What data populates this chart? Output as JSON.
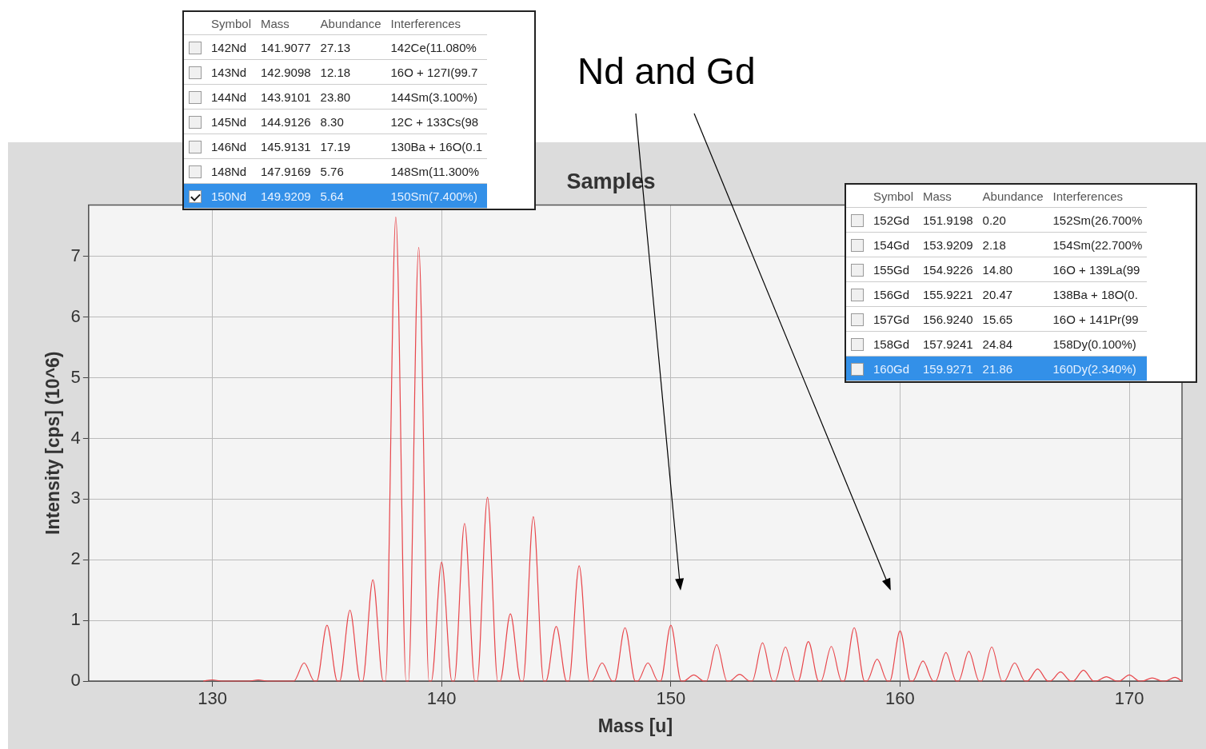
{
  "chart_data": {
    "type": "line",
    "title": "Samples",
    "xlabel": "Mass [u]",
    "ylabel": "Intensity [cps] (10^6)",
    "xlim": [
      124.6,
      172.3
    ],
    "xticks": [
      130,
      140,
      150,
      160,
      170
    ],
    "ylim": [
      0,
      7.85
    ],
    "yticks": [
      0,
      1,
      2,
      3,
      4,
      5,
      6,
      7
    ],
    "grid": true,
    "legend": false,
    "marker": "none",
    "line_style": "solid",
    "series": [
      {
        "color": "#e8474c",
        "x": [
          129.6,
          130,
          130.4,
          131.6,
          132,
          132.4,
          133.55,
          134,
          134.45,
          134.55,
          135,
          135.45,
          135.55,
          136,
          136.45,
          136.55,
          137,
          137.45,
          137.55,
          138,
          138.45,
          138.55,
          139,
          139.45,
          139.55,
          140,
          140.45,
          140.55,
          141,
          141.45,
          141.55,
          142,
          142.45,
          142.55,
          143,
          143.45,
          143.55,
          144,
          144.45,
          144.55,
          145,
          145.45,
          145.55,
          146,
          146.45,
          146.55,
          147,
          147.45,
          147.55,
          148,
          148.45,
          148.55,
          149,
          149.45,
          149.55,
          150,
          150.45,
          150.55,
          151,
          151.45,
          151.55,
          152,
          152.45,
          152.55,
          153,
          153.45,
          153.55,
          154,
          154.45,
          154.55,
          155,
          155.45,
          155.55,
          156,
          156.45,
          156.55,
          157,
          157.45,
          157.55,
          158,
          158.45,
          158.55,
          159,
          159.45,
          159.55,
          160,
          160.45,
          160.55,
          161,
          161.45,
          161.55,
          162,
          162.45,
          162.55,
          163,
          163.45,
          163.55,
          164,
          164.45,
          164.55,
          165,
          165.45,
          165.55,
          166,
          166.45,
          166.55,
          167,
          167.45,
          167.55,
          168,
          168.45,
          168.55,
          169,
          169.45,
          169.55,
          170,
          170.45,
          170.55,
          171,
          171.45,
          171.55,
          172,
          172.3
        ],
        "values": [
          0,
          0.02,
          0,
          0,
          0.02,
          0,
          0,
          0.3,
          0,
          0,
          0.92,
          0,
          0,
          1.17,
          0,
          0,
          1.67,
          0,
          0,
          7.65,
          0,
          0,
          7.15,
          0,
          0,
          1.96,
          0,
          0,
          2.6,
          0,
          0,
          3.03,
          0,
          0,
          1.11,
          0,
          0,
          2.71,
          0,
          0,
          0.9,
          0,
          0,
          1.9,
          0,
          0,
          0.3,
          0,
          0,
          0.88,
          0,
          0,
          0.3,
          0,
          0,
          0.92,
          0,
          0,
          0.1,
          0,
          0,
          0.6,
          0,
          0,
          0.11,
          0,
          0,
          0.63,
          0,
          0,
          0.56,
          0,
          0,
          0.65,
          0,
          0,
          0.57,
          0,
          0,
          0.88,
          0,
          0,
          0.36,
          0,
          0,
          0.83,
          0,
          0,
          0.33,
          0,
          0,
          0.47,
          0,
          0,
          0.49,
          0,
          0,
          0.56,
          0,
          0,
          0.3,
          0,
          0,
          0.2,
          0,
          0,
          0.15,
          0,
          0,
          0.18,
          0,
          0,
          0.07,
          0,
          0,
          0.1,
          0,
          0,
          0.05,
          0,
          0,
          0.06,
          0
        ]
      }
    ],
    "annotations": [
      "Nd and Gd",
      "Symbol  Mass  Abundance  Interferences",
      "142Nd  141.9077  27.13  142Ce(11.080%",
      "143Nd  142.9098  12.18  16O + 127I(99.7",
      "144Nd  143.9101  23.80  144Sm(3.100%)",
      "145Nd  144.9126  8.30  12C + 133Cs(98",
      "146Nd  145.9131  17.19  130Ba + 16O(0.1",
      "148Nd  147.9169  5.76  148Sm(11.300%",
      "150Nd  149.9209  5.64  150Sm(7.400%)",
      "Symbol  Mass  Abundance  Interferences",
      "152Gd  151.9198  0.20  152Sm(26.700%",
      "154Gd  153.9209  2.18  154Sm(22.700%",
      "155Gd  154.9226  14.80  16O + 139La(99",
      "156Gd  155.9221  20.47  138Ba + 18O(0.",
      "157Gd  156.9240  15.65  16O + 141Pr(99",
      "158Gd  157.9241  24.84  158Dy(0.100%)",
      "160Gd  159.9271  21.86  160Dy(2.340%)"
    ]
  }
}
